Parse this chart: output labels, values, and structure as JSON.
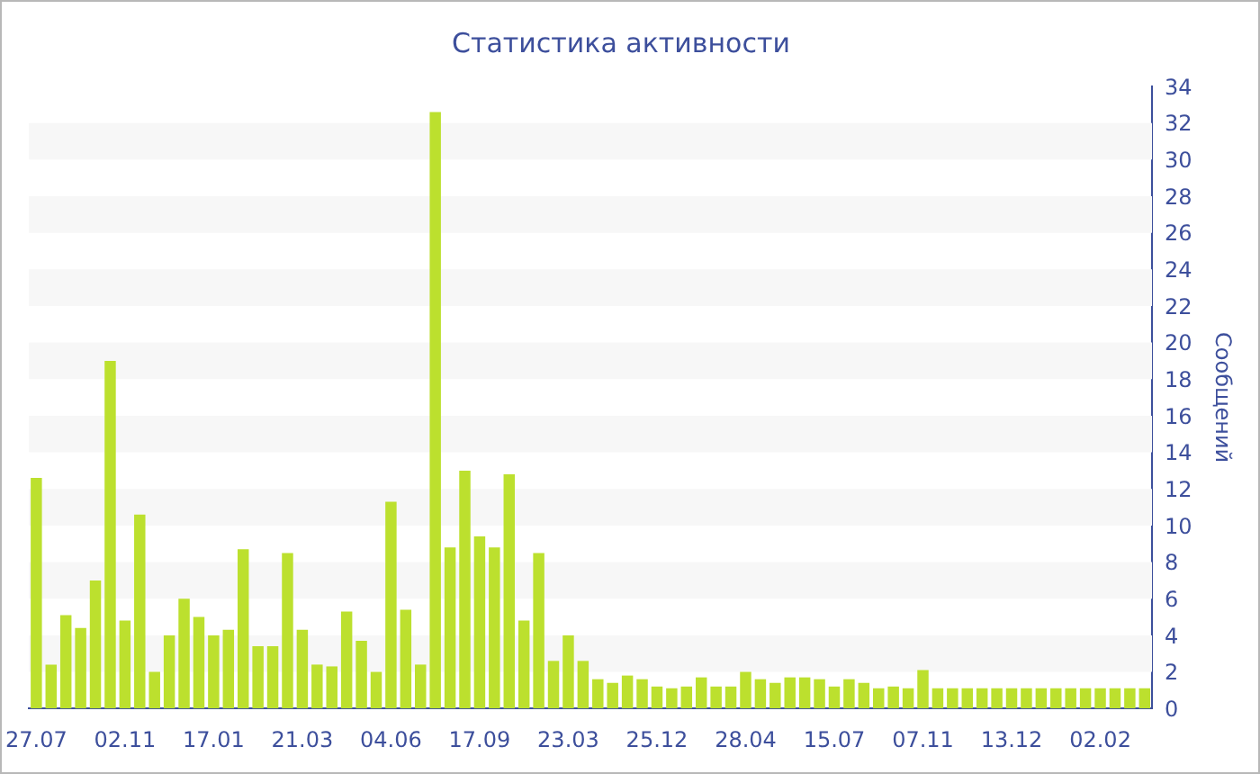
{
  "chart_data": {
    "type": "bar",
    "title": "Статистика активности",
    "ylabel": "Сообщений",
    "categories": [
      "27.07",
      null,
      null,
      null,
      null,
      null,
      "02.11",
      null,
      null,
      null,
      null,
      null,
      "17.01",
      null,
      null,
      null,
      null,
      null,
      "21.03",
      null,
      null,
      null,
      null,
      null,
      "04.06",
      null,
      null,
      null,
      null,
      null,
      "17.09",
      null,
      null,
      null,
      null,
      null,
      "23.03",
      null,
      null,
      null,
      null,
      null,
      "25.12",
      null,
      null,
      null,
      null,
      null,
      "28.04",
      null,
      null,
      null,
      null,
      null,
      "15.07",
      null,
      null,
      null,
      null,
      null,
      "07.11",
      null,
      null,
      null,
      null,
      null,
      "13.12",
      null,
      null,
      null,
      null,
      null,
      "02.02",
      null,
      null,
      null
    ],
    "values": [
      12.6,
      2.4,
      5.1,
      4.4,
      7.0,
      19.0,
      4.8,
      10.6,
      2.0,
      4.0,
      6.0,
      5.0,
      4.0,
      4.3,
      8.7,
      3.4,
      3.4,
      8.5,
      4.3,
      2.4,
      2.3,
      5.3,
      3.7,
      2.0,
      11.3,
      5.4,
      2.4,
      32.6,
      8.8,
      13.0,
      9.4,
      8.8,
      12.8,
      4.8,
      8.5,
      2.6,
      4.0,
      2.6,
      1.6,
      1.4,
      1.8,
      1.6,
      1.2,
      1.1,
      1.2,
      1.7,
      1.2,
      1.2,
      2.0,
      1.6,
      1.4,
      1.7,
      1.7,
      1.6,
      1.2,
      1.6,
      1.4,
      1.1,
      1.2,
      1.1,
      2.1,
      1.1,
      1.1,
      1.1,
      1.1,
      1.1,
      1.1,
      1.1,
      1.1,
      1.1,
      1.1,
      1.1,
      1.1,
      1.1,
      1.1,
      1.1
    ],
    "color": "#bce02e",
    "ylim": [
      0,
      34
    ],
    "yticks": [
      0,
      2,
      4,
      6,
      8,
      10,
      12,
      14,
      16,
      18,
      20,
      22,
      24,
      26,
      28,
      30,
      32,
      34
    ],
    "bands": [
      {
        "axis": "y",
        "from": 2,
        "to": 4,
        "color": "#f7f7f7"
      },
      {
        "axis": "y",
        "from": 6,
        "to": 8,
        "color": "#f7f7f7"
      },
      {
        "axis": "y",
        "from": 10,
        "to": 12,
        "color": "#f7f7f7"
      },
      {
        "axis": "y",
        "from": 14,
        "to": 16,
        "color": "#f7f7f7"
      },
      {
        "axis": "y",
        "from": 18,
        "to": 20,
        "color": "#f7f7f7"
      },
      {
        "axis": "y",
        "from": 22,
        "to": 24,
        "color": "#f7f7f7"
      },
      {
        "axis": "y",
        "from": 26,
        "to": 28,
        "color": "#f7f7f7"
      },
      {
        "axis": "y",
        "from": 30,
        "to": 32,
        "color": "#f7f7f7"
      }
    ]
  }
}
